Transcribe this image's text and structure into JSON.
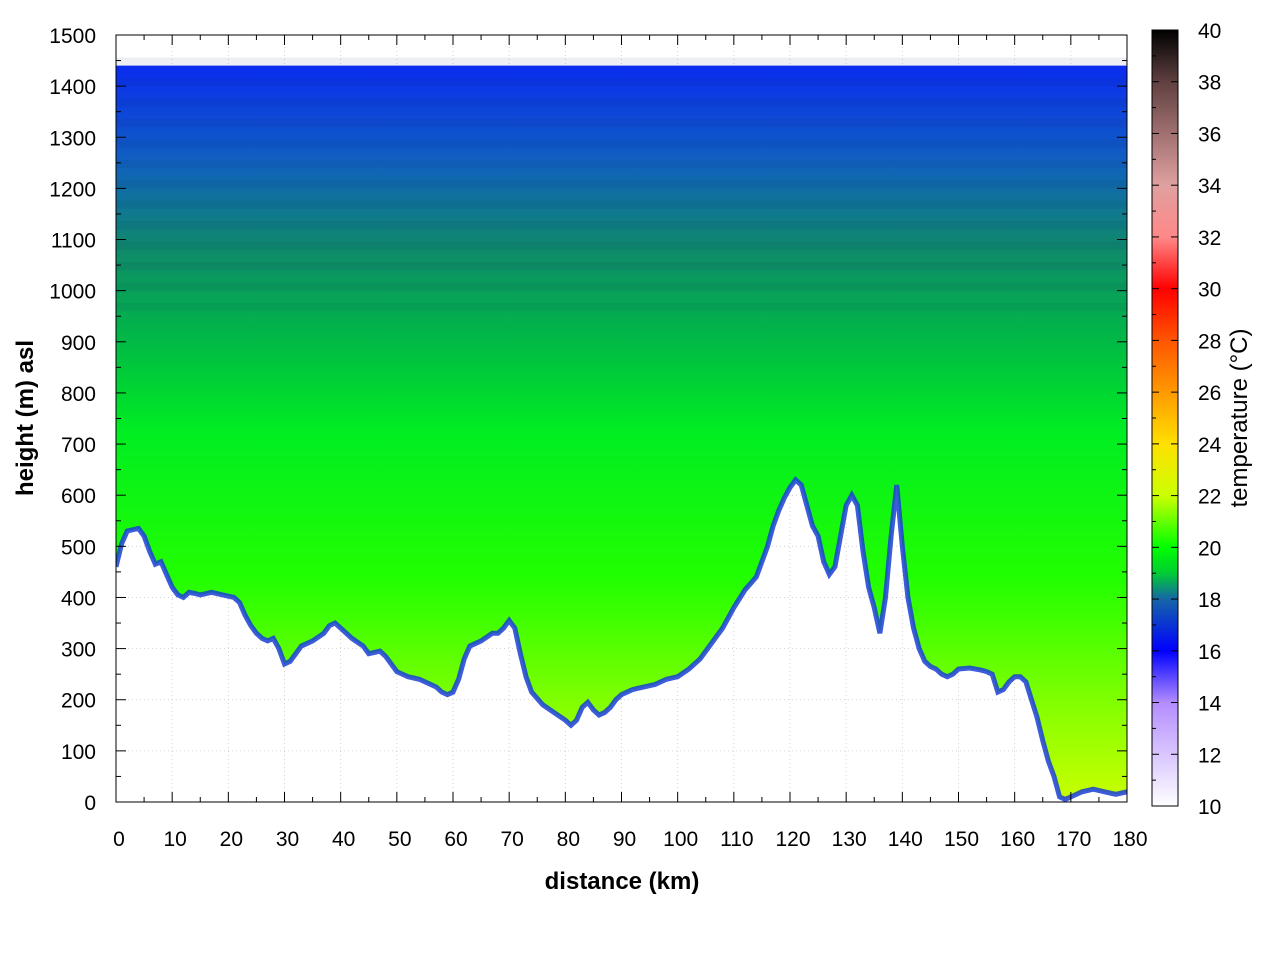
{
  "chart_data": {
    "type": "heatmap",
    "title": "",
    "xlabel": "distance (km)",
    "ylabel": "height (m) asl",
    "colorbar_label": "temperature (°C)",
    "xlim": [
      0,
      180
    ],
    "ylim": [
      0,
      1500
    ],
    "clim": [
      10,
      40
    ],
    "x_ticks": [
      0,
      10,
      20,
      30,
      40,
      50,
      60,
      70,
      80,
      90,
      100,
      110,
      120,
      130,
      140,
      150,
      160,
      170,
      180
    ],
    "y_ticks": [
      0,
      100,
      200,
      300,
      400,
      500,
      600,
      700,
      800,
      900,
      1000,
      1100,
      1200,
      1300,
      1400,
      1500
    ],
    "c_ticks": [
      10,
      12,
      14,
      16,
      18,
      20,
      22,
      24,
      26,
      28,
      30,
      32,
      34,
      36,
      38,
      40
    ],
    "grid": true,
    "colormap": [
      {
        "t": 10,
        "color": "#ffffff"
      },
      {
        "t": 14,
        "color": "#b38cff"
      },
      {
        "t": 16,
        "color": "#0000ff"
      },
      {
        "t": 18,
        "color": "#1566a6"
      },
      {
        "t": 19,
        "color": "#00cc33"
      },
      {
        "t": 20,
        "color": "#00ff00"
      },
      {
        "t": 22,
        "color": "#ccff00"
      },
      {
        "t": 24,
        "color": "#ffe000"
      },
      {
        "t": 26,
        "color": "#ff9900"
      },
      {
        "t": 28,
        "color": "#ff5500"
      },
      {
        "t": 30,
        "color": "#ff0000"
      },
      {
        "t": 32,
        "color": "#ff8888"
      },
      {
        "t": 34,
        "color": "#e0a0a0"
      },
      {
        "t": 36,
        "color": "#a07070"
      },
      {
        "t": 38,
        "color": "#604040"
      },
      {
        "t": 40,
        "color": "#000000"
      }
    ],
    "terrain": {
      "x": [
        0,
        1,
        2,
        4,
        5,
        6,
        7,
        8,
        9,
        10,
        11,
        12,
        13,
        14,
        15,
        17,
        19,
        21,
        22,
        23,
        24,
        25,
        26,
        27,
        28,
        29,
        30,
        31,
        32,
        33,
        35,
        37,
        38,
        39,
        40,
        42,
        44,
        45,
        47,
        48,
        50,
        52,
        54,
        56,
        57,
        58,
        59,
        60,
        61,
        62,
        63,
        65,
        67,
        68,
        69,
        70,
        71,
        72,
        73,
        74,
        76,
        78,
        80,
        81,
        82,
        83,
        84,
        85,
        86,
        87,
        88,
        89,
        90,
        92,
        94,
        96,
        98,
        100,
        102,
        104,
        106,
        108,
        110,
        112,
        114,
        115,
        116,
        117,
        118,
        119,
        120,
        121,
        122,
        123,
        124,
        125,
        126,
        127,
        128,
        129,
        130,
        131,
        132,
        133,
        134,
        135,
        136,
        137,
        138,
        139,
        140,
        141,
        142,
        143,
        144,
        145,
        146,
        147,
        148,
        149,
        150,
        152,
        154,
        155,
        156,
        157,
        158,
        159,
        160,
        161,
        162,
        163,
        164,
        165,
        166,
        167,
        168,
        169,
        170,
        172,
        174,
        176,
        178,
        180
      ],
      "h": [
        460,
        505,
        530,
        535,
        520,
        490,
        465,
        470,
        445,
        420,
        405,
        400,
        410,
        408,
        405,
        410,
        405,
        400,
        390,
        365,
        345,
        330,
        320,
        315,
        320,
        300,
        270,
        275,
        290,
        305,
        315,
        330,
        345,
        350,
        340,
        320,
        305,
        290,
        295,
        285,
        255,
        245,
        240,
        230,
        225,
        215,
        210,
        215,
        240,
        280,
        305,
        315,
        330,
        330,
        340,
        355,
        340,
        290,
        245,
        215,
        190,
        175,
        160,
        150,
        160,
        185,
        195,
        180,
        170,
        175,
        185,
        200,
        210,
        220,
        225,
        230,
        240,
        245,
        260,
        280,
        310,
        340,
        380,
        415,
        440,
        470,
        500,
        540,
        570,
        595,
        615,
        630,
        620,
        580,
        540,
        520,
        470,
        445,
        460,
        520,
        580,
        600,
        580,
        490,
        420,
        380,
        330,
        400,
        520,
        620,
        500,
        400,
        340,
        300,
        275,
        265,
        260,
        250,
        245,
        250,
        260,
        262,
        258,
        255,
        250,
        215,
        220,
        235,
        245,
        245,
        235,
        200,
        165,
        120,
        80,
        50,
        10,
        5,
        10,
        20,
        25,
        20,
        15,
        20
      ]
    }
  }
}
